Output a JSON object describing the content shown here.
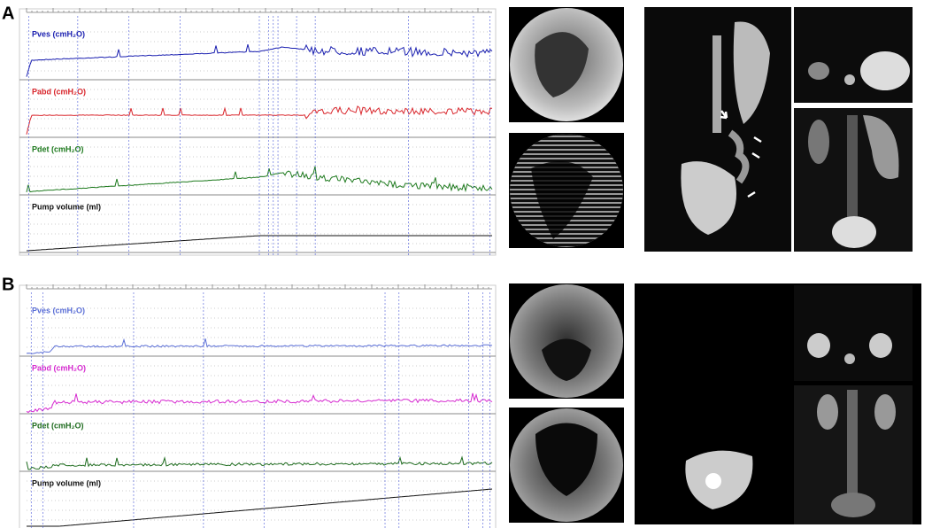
{
  "panels": [
    {
      "label": "A",
      "traces": [
        {
          "label": "Pves (cmH₂O)",
          "color": "#1a1fb0"
        },
        {
          "label": "Pabd (cmH₂O)",
          "color": "#d9262c"
        },
        {
          "label": "Pdet (cmH₂O)",
          "color": "#1e7a1e"
        },
        {
          "label": "Pump volume (ml)",
          "color": "#111111"
        }
      ]
    },
    {
      "label": "B",
      "traces": [
        {
          "label": "Pves (cmH₂O)",
          "color": "#5b6fd6"
        },
        {
          "label": "Pabd (cmH₂O)",
          "color": "#d62ad0"
        },
        {
          "label": "Pdet (cmH₂O)",
          "color": "#1e6b1e"
        },
        {
          "label": "Pump volume (ml)",
          "color": "#111111"
        }
      ]
    }
  ]
}
